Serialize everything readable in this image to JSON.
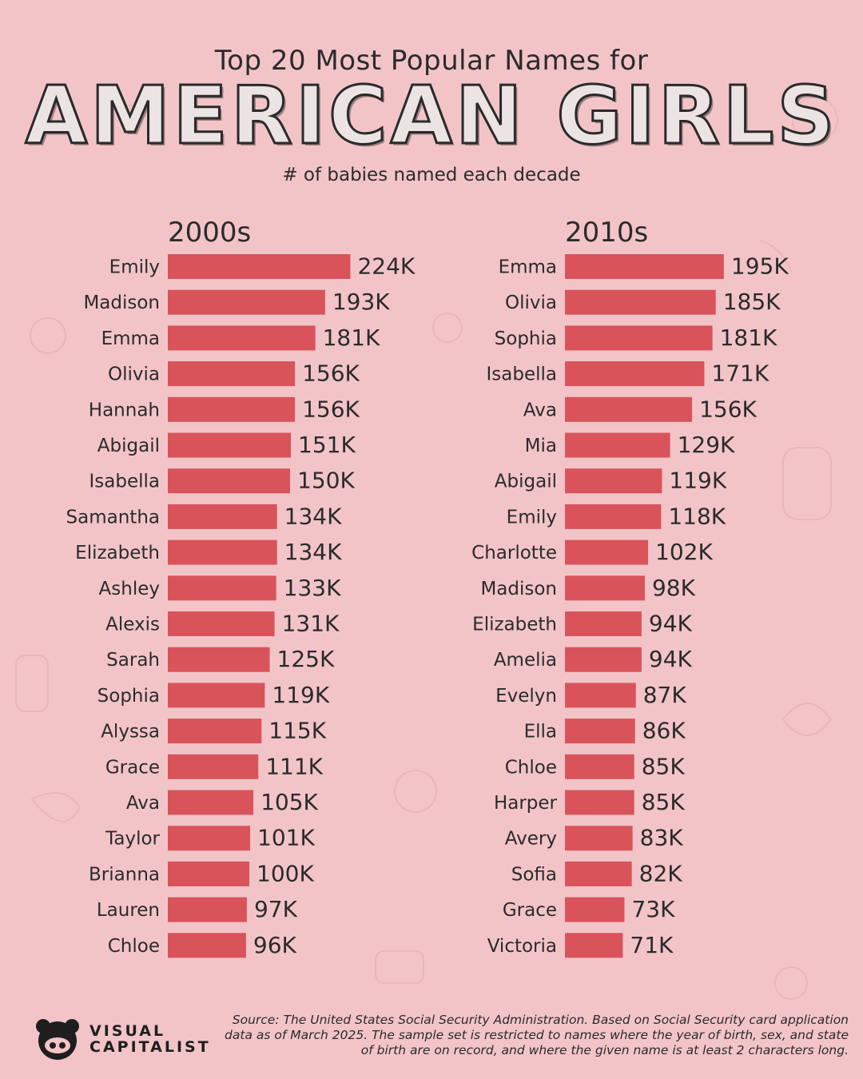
{
  "header": {
    "pre_title": "Top 20 Most Popular Names for",
    "title": "AMERICAN GIRLS",
    "unit": "# of babies named each decade"
  },
  "chart_data": [
    {
      "type": "bar",
      "orientation": "horizontal",
      "title": "2000s",
      "color": "#d9535b",
      "categories": [
        "Emily",
        "Madison",
        "Emma",
        "Olivia",
        "Hannah",
        "Abigail",
        "Isabella",
        "Samantha",
        "Elizabeth",
        "Ashley",
        "Alexis",
        "Sarah",
        "Sophia",
        "Alyssa",
        "Grace",
        "Ava",
        "Taylor",
        "Brianna",
        "Lauren",
        "Chloe"
      ],
      "values": [
        224,
        193,
        181,
        156,
        156,
        151,
        150,
        134,
        134,
        133,
        131,
        125,
        119,
        115,
        111,
        105,
        101,
        100,
        97,
        96
      ],
      "labels": [
        "224K",
        "193K",
        "181K",
        "156K",
        "156K",
        "151K",
        "150K",
        "134K",
        "134K",
        "133K",
        "131K",
        "125K",
        "119K",
        "115K",
        "111K",
        "105K",
        "101K",
        "100K",
        "97K",
        "96K"
      ],
      "unit": "K"
    },
    {
      "type": "bar",
      "orientation": "horizontal",
      "title": "2010s",
      "color": "#d9535b",
      "categories": [
        "Emma",
        "Olivia",
        "Sophia",
        "Isabella",
        "Ava",
        "Mia",
        "Abigail",
        "Emily",
        "Charlotte",
        "Madison",
        "Elizabeth",
        "Amelia",
        "Evelyn",
        "Ella",
        "Chloe",
        "Harper",
        "Avery",
        "Sofia",
        "Grace",
        "Victoria"
      ],
      "values": [
        195,
        185,
        181,
        171,
        156,
        129,
        119,
        118,
        102,
        98,
        94,
        94,
        87,
        86,
        85,
        85,
        83,
        82,
        73,
        71
      ],
      "labels": [
        "195K",
        "185K",
        "181K",
        "171K",
        "156K",
        "129K",
        "119K",
        "118K",
        "102K",
        "98K",
        "94K",
        "94K",
        "87K",
        "86K",
        "85K",
        "85K",
        "83K",
        "82K",
        "73K",
        "71K"
      ],
      "unit": "K"
    }
  ],
  "footer": {
    "brand_line1": "VISUAL",
    "brand_line2": "CAPITALIST",
    "source": "Source: The United States Social Security Administration. Based on Social Security card application data as of March 2025. The sample set is restricted to names where the year of birth, sex, and state of birth are on record, and where the given name is at least 2 characters long."
  },
  "colors": {
    "background": "#f2c4c8",
    "bar": "#d9535b",
    "text": "#2b2b2b"
  }
}
